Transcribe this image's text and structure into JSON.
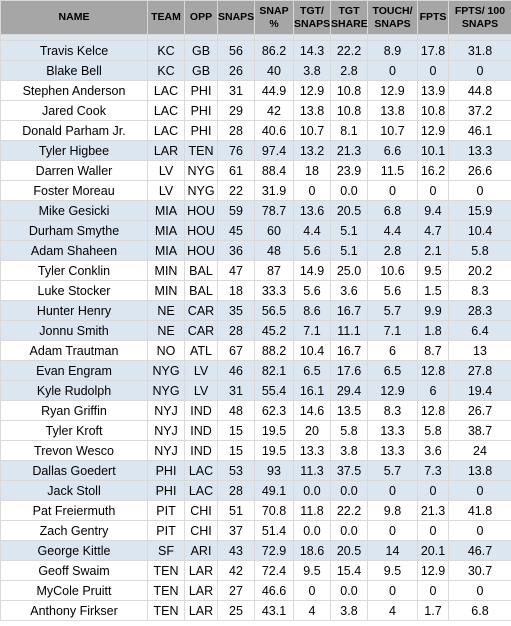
{
  "headers": [
    "NAME",
    "TEAM",
    "OPP",
    "SNAPS",
    "SNAP %",
    "TGT/ SNAPS",
    "TGT SHARE",
    "TOUCH/ SNAPS",
    "FPTS",
    "FPTS/ 100 SNAPS"
  ],
  "colors": {
    "header_bg": "#a6a6a6",
    "band_bg": "#dce6f1",
    "plain_bg": "#ffffff",
    "grid": "#d9d9d9"
  },
  "rows": [
    {
      "band": true,
      "cells": [
        "Travis Kelce",
        "KC",
        "GB",
        "56",
        "86.2",
        "14.3",
        "22.2",
        "8.9",
        "17.8",
        "31.8"
      ]
    },
    {
      "band": true,
      "cells": [
        "Blake Bell",
        "KC",
        "GB",
        "26",
        "40",
        "3.8",
        "2.8",
        "0",
        "0",
        "0"
      ]
    },
    {
      "band": false,
      "cells": [
        "Stephen Anderson",
        "LAC",
        "PHI",
        "31",
        "44.9",
        "12.9",
        "10.8",
        "12.9",
        "13.9",
        "44.8"
      ]
    },
    {
      "band": false,
      "cells": [
        "Jared Cook",
        "LAC",
        "PHI",
        "29",
        "42",
        "13.8",
        "10.8",
        "13.8",
        "10.8",
        "37.2"
      ]
    },
    {
      "band": false,
      "cells": [
        "Donald Parham Jr.",
        "LAC",
        "PHI",
        "28",
        "40.6",
        "10.7",
        "8.1",
        "10.7",
        "12.9",
        "46.1"
      ]
    },
    {
      "band": true,
      "cells": [
        "Tyler Higbee",
        "LAR",
        "TEN",
        "76",
        "97.4",
        "13.2",
        "21.3",
        "6.6",
        "10.1",
        "13.3"
      ]
    },
    {
      "band": false,
      "cells": [
        "Darren Waller",
        "LV",
        "NYG",
        "61",
        "88.4",
        "18",
        "23.9",
        "11.5",
        "16.2",
        "26.6"
      ]
    },
    {
      "band": false,
      "cells": [
        "Foster Moreau",
        "LV",
        "NYG",
        "22",
        "31.9",
        "0",
        "0.0",
        "0",
        "0",
        "0"
      ]
    },
    {
      "band": true,
      "cells": [
        "Mike Gesicki",
        "MIA",
        "HOU",
        "59",
        "78.7",
        "13.6",
        "20.5",
        "6.8",
        "9.4",
        "15.9"
      ]
    },
    {
      "band": true,
      "cells": [
        "Durham Smythe",
        "MIA",
        "HOU",
        "45",
        "60",
        "4.4",
        "5.1",
        "4.4",
        "4.7",
        "10.4"
      ]
    },
    {
      "band": true,
      "cells": [
        "Adam Shaheen",
        "MIA",
        "HOU",
        "36",
        "48",
        "5.6",
        "5.1",
        "2.8",
        "2.1",
        "5.8"
      ]
    },
    {
      "band": false,
      "cells": [
        "Tyler Conklin",
        "MIN",
        "BAL",
        "47",
        "87",
        "14.9",
        "25.0",
        "10.6",
        "9.5",
        "20.2"
      ]
    },
    {
      "band": false,
      "cells": [
        "Luke Stocker",
        "MIN",
        "BAL",
        "18",
        "33.3",
        "5.6",
        "3.6",
        "5.6",
        "1.5",
        "8.3"
      ]
    },
    {
      "band": true,
      "cells": [
        "Hunter Henry",
        "NE",
        "CAR",
        "35",
        "56.5",
        "8.6",
        "16.7",
        "5.7",
        "9.9",
        "28.3"
      ]
    },
    {
      "band": true,
      "cells": [
        "Jonnu Smith",
        "NE",
        "CAR",
        "28",
        "45.2",
        "7.1",
        "11.1",
        "7.1",
        "1.8",
        "6.4"
      ]
    },
    {
      "band": false,
      "cells": [
        "Adam Trautman",
        "NO",
        "ATL",
        "67",
        "88.2",
        "10.4",
        "16.7",
        "6",
        "8.7",
        "13"
      ]
    },
    {
      "band": true,
      "cells": [
        "Evan Engram",
        "NYG",
        "LV",
        "46",
        "82.1",
        "6.5",
        "17.6",
        "6.5",
        "12.8",
        "27.8"
      ]
    },
    {
      "band": true,
      "cells": [
        "Kyle Rudolph",
        "NYG",
        "LV",
        "31",
        "55.4",
        "16.1",
        "29.4",
        "12.9",
        "6",
        "19.4"
      ]
    },
    {
      "band": false,
      "cells": [
        "Ryan Griffin",
        "NYJ",
        "IND",
        "48",
        "62.3",
        "14.6",
        "13.5",
        "8.3",
        "12.8",
        "26.7"
      ]
    },
    {
      "band": false,
      "cells": [
        "Tyler Kroft",
        "NYJ",
        "IND",
        "15",
        "19.5",
        "20",
        "5.8",
        "13.3",
        "5.8",
        "38.7"
      ]
    },
    {
      "band": false,
      "cells": [
        "Trevon Wesco",
        "NYJ",
        "IND",
        "15",
        "19.5",
        "13.3",
        "3.8",
        "13.3",
        "3.6",
        "24"
      ]
    },
    {
      "band": true,
      "cells": [
        "Dallas Goedert",
        "PHI",
        "LAC",
        "53",
        "93",
        "11.3",
        "37.5",
        "5.7",
        "7.3",
        "13.8"
      ]
    },
    {
      "band": true,
      "cells": [
        "Jack Stoll",
        "PHI",
        "LAC",
        "28",
        "49.1",
        "0.0",
        "0.0",
        "0",
        "0",
        "0"
      ]
    },
    {
      "band": false,
      "cells": [
        "Pat Freiermuth",
        "PIT",
        "CHI",
        "51",
        "70.8",
        "11.8",
        "22.2",
        "9.8",
        "21.3",
        "41.8"
      ]
    },
    {
      "band": false,
      "cells": [
        "Zach Gentry",
        "PIT",
        "CHI",
        "37",
        "51.4",
        "0.0",
        "0.0",
        "0",
        "0",
        "0"
      ]
    },
    {
      "band": true,
      "cells": [
        "George Kittle",
        "SF",
        "ARI",
        "43",
        "72.9",
        "18.6",
        "20.5",
        "14",
        "20.1",
        "46.7"
      ]
    },
    {
      "band": false,
      "cells": [
        "Geoff Swaim",
        "TEN",
        "LAR",
        "42",
        "72.4",
        "9.5",
        "15.4",
        "9.5",
        "12.9",
        "30.7"
      ]
    },
    {
      "band": false,
      "cells": [
        "MyCole Pruitt",
        "TEN",
        "LAR",
        "27",
        "46.6",
        "0",
        "0.0",
        "0",
        "0",
        "0"
      ]
    },
    {
      "band": false,
      "cells": [
        "Anthony Firkser",
        "TEN",
        "LAR",
        "25",
        "43.1",
        "4",
        "3.8",
        "4",
        "1.7",
        "6.8"
      ]
    }
  ]
}
